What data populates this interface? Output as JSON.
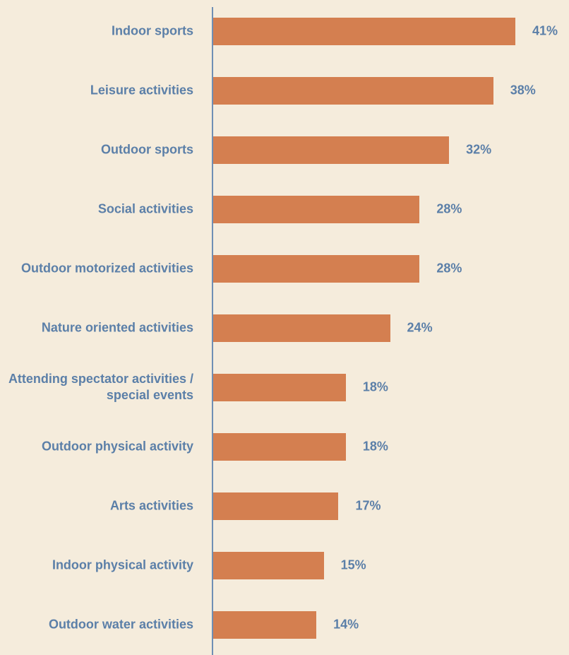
{
  "chart_data": {
    "type": "bar",
    "orientation": "horizontal",
    "categories": [
      "Indoor sports",
      "Leisure activities",
      "Outdoor sports",
      "Social activities",
      "Outdoor motorized activities",
      "Nature oriented activities",
      "Attending spectator activities / special events",
      "Outdoor physical activity",
      "Arts activities",
      "Indoor physical activity",
      "Outdoor water activities"
    ],
    "values": [
      41,
      38,
      32,
      28,
      28,
      24,
      18,
      18,
      17,
      15,
      14
    ],
    "value_labels": [
      "41%",
      "38%",
      "32%",
      "28%",
      "28%",
      "24%",
      "18%",
      "18%",
      "17%",
      "15%",
      "14%"
    ],
    "color": "#d47f50"
  }
}
